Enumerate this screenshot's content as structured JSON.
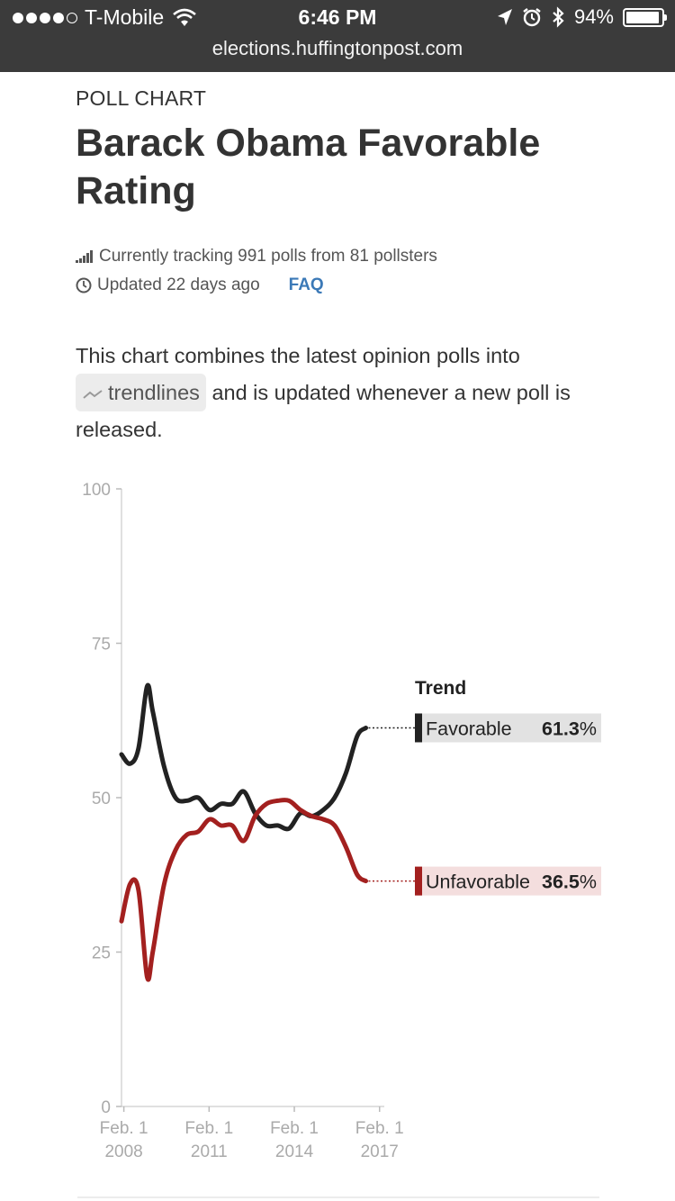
{
  "status_bar": {
    "carrier": "T-Mobile",
    "time": "6:46 PM",
    "battery": "94%",
    "url": "elections.huffingtonpost.com"
  },
  "header": {
    "kicker": "POLL CHART",
    "title": "Barack Obama Favorable Rating",
    "tracking": "Currently tracking 991 polls from 81 pollsters",
    "updated": "Updated 22 days ago",
    "faq": "FAQ"
  },
  "description": {
    "before": "This chart combines the latest opinion polls into",
    "pill": "trendlines",
    "after": "and is updated whenever a new poll is released."
  },
  "chart_data": {
    "type": "line",
    "ylim": [
      0,
      100
    ],
    "yticks": [
      0,
      25,
      50,
      75,
      100
    ],
    "xlim": [
      2008.0,
      2017.25
    ],
    "xticks": [
      {
        "x": 2008.083,
        "line1": "Feb. 1",
        "line2": "2008"
      },
      {
        "x": 2011.083,
        "line1": "Feb. 1",
        "line2": "2011"
      },
      {
        "x": 2014.083,
        "line1": "Feb. 1",
        "line2": "2014"
      },
      {
        "x": 2017.083,
        "line1": "Feb. 1",
        "line2": "2017"
      }
    ],
    "legend_title": "Trend",
    "series": [
      {
        "name": "Favorable",
        "color": "#222222",
        "label_bg": "#e2e2e2",
        "final_value": "61.3%",
        "points": [
          [
            2008.0,
            57
          ],
          [
            2008.3,
            55.5
          ],
          [
            2008.6,
            58
          ],
          [
            2008.9,
            68
          ],
          [
            2009.1,
            64
          ],
          [
            2009.5,
            55
          ],
          [
            2009.9,
            50
          ],
          [
            2010.3,
            49.5
          ],
          [
            2010.7,
            50
          ],
          [
            2011.1,
            48
          ],
          [
            2011.5,
            49
          ],
          [
            2011.9,
            49
          ],
          [
            2012.3,
            51
          ],
          [
            2012.7,
            47.5
          ],
          [
            2013.1,
            45.5
          ],
          [
            2013.5,
            45.5
          ],
          [
            2013.9,
            45
          ],
          [
            2014.3,
            47.5
          ],
          [
            2014.7,
            47
          ],
          [
            2015.1,
            48
          ],
          [
            2015.5,
            50
          ],
          [
            2015.9,
            54
          ],
          [
            2016.3,
            60
          ],
          [
            2016.6,
            61.3
          ]
        ]
      },
      {
        "name": "Unfavorable",
        "color": "#a3201f",
        "label_bg": "#f4dede",
        "final_value": "36.5%",
        "points": [
          [
            2008.0,
            30
          ],
          [
            2008.3,
            36
          ],
          [
            2008.6,
            35
          ],
          [
            2008.9,
            21
          ],
          [
            2009.1,
            25
          ],
          [
            2009.5,
            36
          ],
          [
            2009.9,
            41.5
          ],
          [
            2010.3,
            44
          ],
          [
            2010.7,
            44.5
          ],
          [
            2011.1,
            46.5
          ],
          [
            2011.5,
            45.5
          ],
          [
            2011.9,
            45.5
          ],
          [
            2012.3,
            43
          ],
          [
            2012.7,
            47
          ],
          [
            2013.1,
            49
          ],
          [
            2013.5,
            49.5
          ],
          [
            2013.9,
            49.5
          ],
          [
            2014.3,
            48
          ],
          [
            2014.7,
            47
          ],
          [
            2015.1,
            46.5
          ],
          [
            2015.5,
            45.5
          ],
          [
            2015.9,
            42
          ],
          [
            2016.3,
            37.5
          ],
          [
            2016.6,
            36.5
          ]
        ]
      }
    ]
  }
}
